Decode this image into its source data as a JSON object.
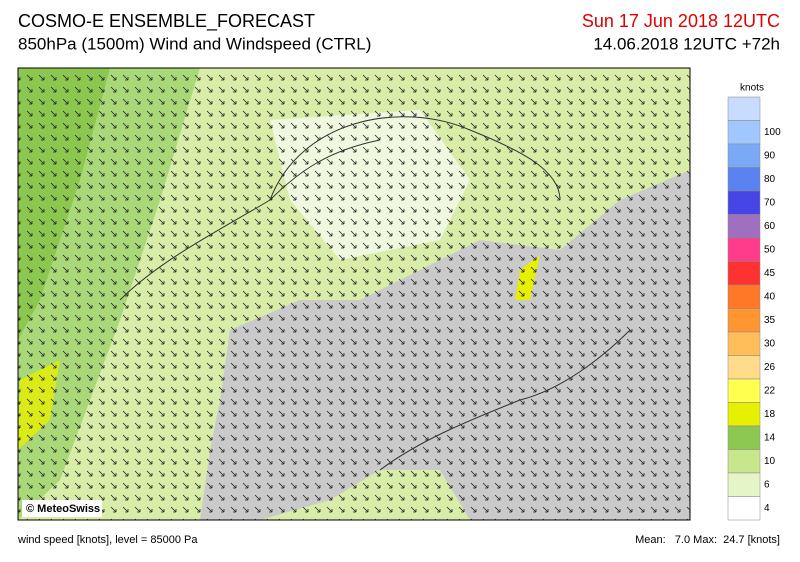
{
  "header": {
    "title": "COSMO-E ENSEMBLE_FORECAST",
    "subtitle": "850hPa (1500m) Wind and Windspeed (CTRL)",
    "valid_time": "Sun 17 Jun 2018 12UTC",
    "run_time": "14.06.2018 12UTC +72h"
  },
  "colorbar": {
    "unit": "knots",
    "labels": [
      100,
      90,
      80,
      70,
      60,
      50,
      45,
      40,
      35,
      30,
      26,
      22,
      18,
      14,
      10,
      6,
      4
    ],
    "colors": [
      "#c8dcff",
      "#a0c8ff",
      "#7aaaf5",
      "#5a82f0",
      "#4646e6",
      "#a070c0",
      "#ff3c8c",
      "#ff3232",
      "#ff7828",
      "#ff9632",
      "#ffbe5a",
      "#ffdc8c",
      "#ffff50",
      "#e6f000",
      "#8cc850",
      "#c8e68c",
      "#e6f5c8",
      "#ffffff"
    ]
  },
  "copyright": "© MeteoSwiss",
  "footer": {
    "level_info": "wind speed [knots], level = 85000 Pa",
    "stats": "Mean:   7.0 Max:  24.7 [knots]"
  }
}
